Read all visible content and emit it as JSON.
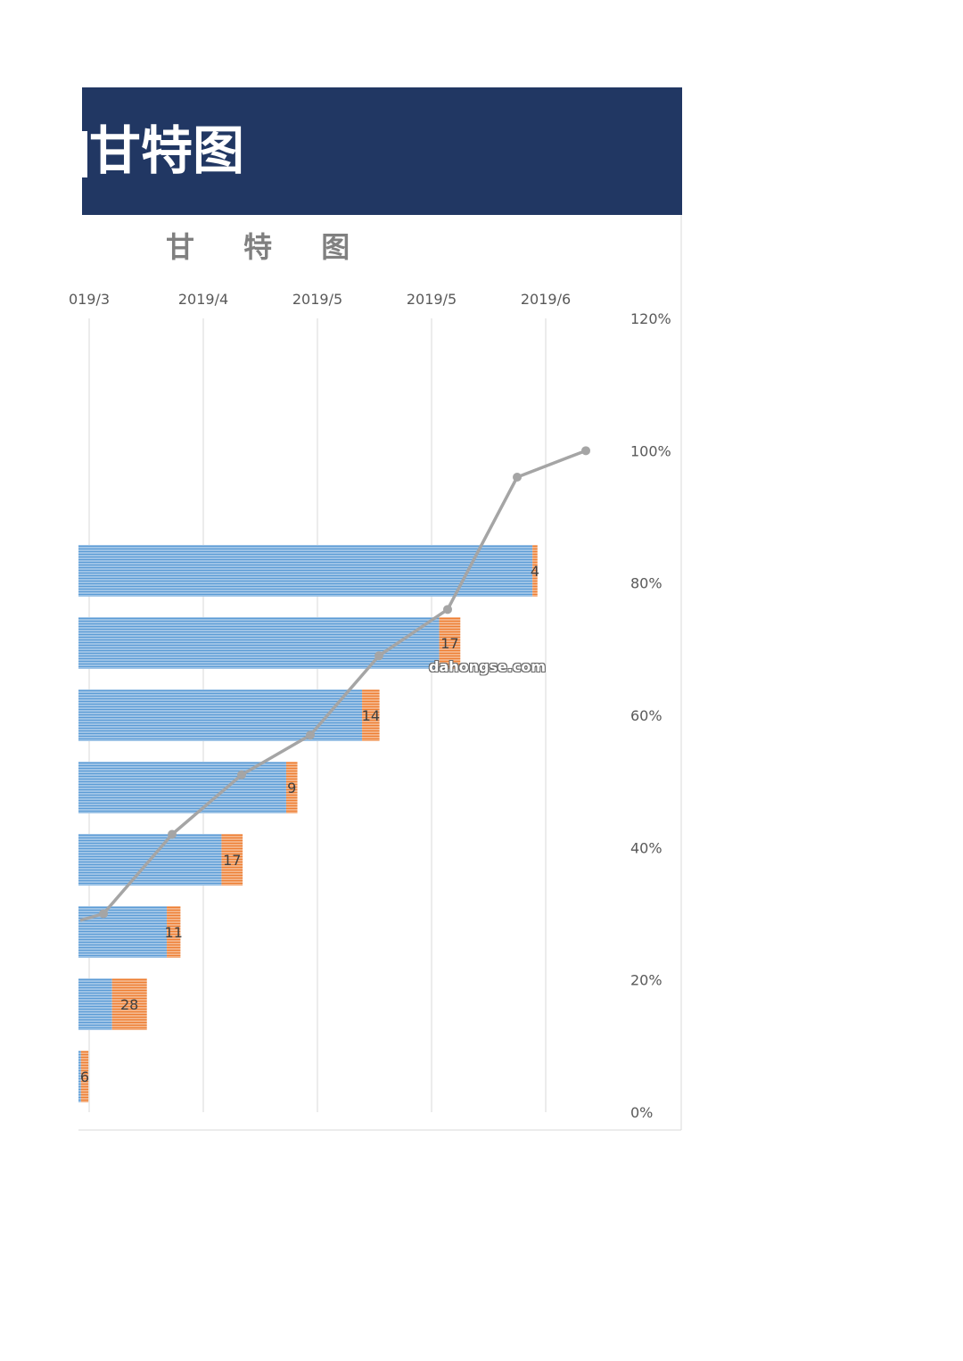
{
  "banner": {
    "title": "甘特图"
  },
  "watermark": "dahongse.com",
  "chart_data": {
    "type": "bar",
    "title": "甘 特 图",
    "x_axis_ticks": [
      "019/3",
      "2019/4",
      "2019/5",
      "2019/5",
      "2019/6"
    ],
    "y2_axis_ticks": [
      "0%",
      "20%",
      "40%",
      "60%",
      "80%",
      "100%",
      "120%"
    ],
    "y2lim": [
      0,
      1.2
    ],
    "grid": "vertical",
    "series": [
      {
        "role": "offset",
        "values": [
          2,
          27,
          71,
          115,
          167,
          228,
          290,
          365
        ],
        "color": "#5b9bd5"
      },
      {
        "role": "duration",
        "values": [
          6,
          28,
          11,
          17,
          9,
          14,
          17,
          4
        ],
        "color": "#ed7d31"
      }
    ],
    "line_series": {
      "values": [
        0.29,
        0.3,
        0.42,
        0.51,
        0.57,
        0.69,
        0.76,
        0.96,
        1.0
      ],
      "color": "#a5a5a5"
    }
  }
}
